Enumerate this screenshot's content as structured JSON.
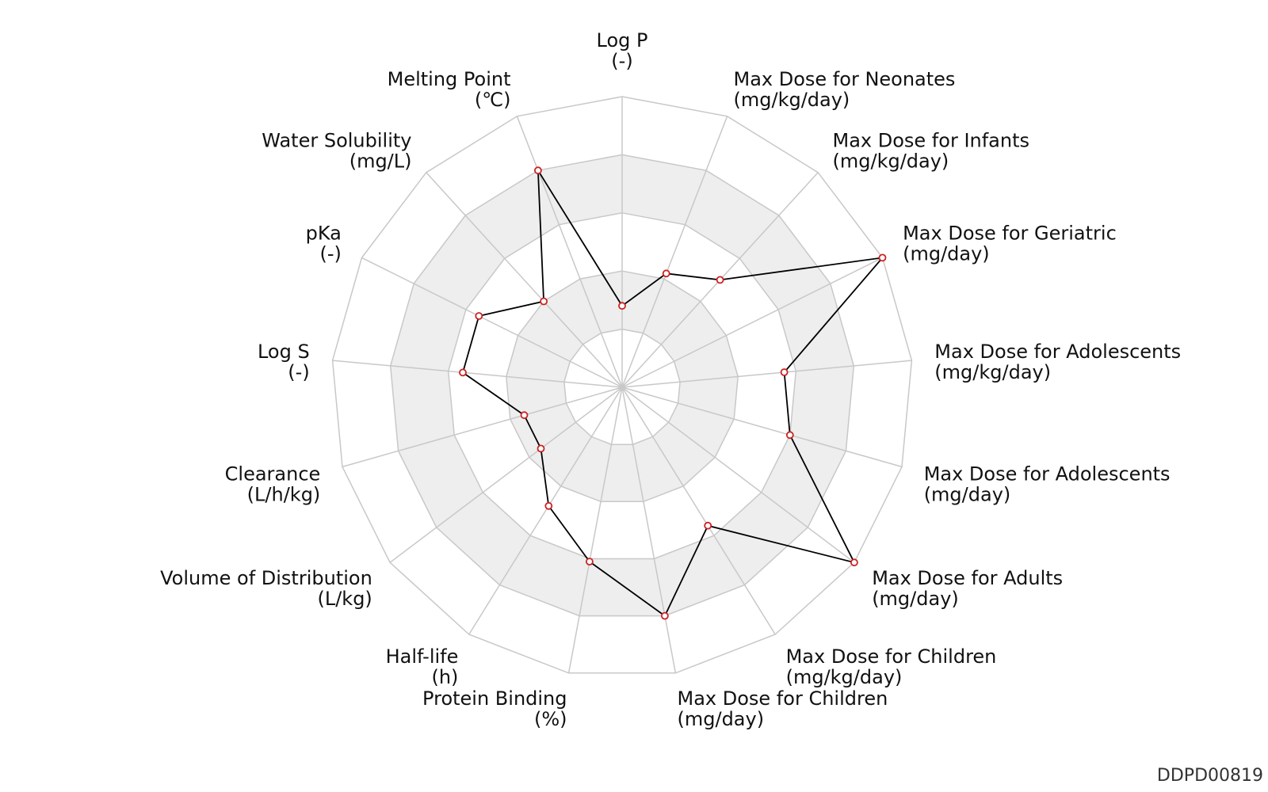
{
  "chart_data": {
    "type": "radar",
    "title": "",
    "levels": 5,
    "rmax": 1.0,
    "grid": true,
    "axes": [
      {
        "name": "Log P",
        "unit": "(-)",
        "value": 0.28
      },
      {
        "name": "Max Dose for Neonates",
        "unit": "(mg/kg/day)",
        "value": 0.42
      },
      {
        "name": "Max Dose for Infants",
        "unit": "(mg/kg/day)",
        "value": 0.5
      },
      {
        "name": "Max Dose for Geriatric",
        "unit": "(mg/day)",
        "value": 1.0
      },
      {
        "name": "Max Dose for Adolescents",
        "unit": "(mg/kg/day)",
        "value": 0.56
      },
      {
        "name": "Max Dose for Adolescents",
        "unit": "(mg/day)",
        "value": 0.6
      },
      {
        "name": "Max Dose for Adults",
        "unit": "(mg/day)",
        "value": 1.0
      },
      {
        "name": "Max Dose for Children",
        "unit": "(mg/kg/day)",
        "value": 0.56
      },
      {
        "name": "Max Dose for Children",
        "unit": "(mg/day)",
        "value": 0.8
      },
      {
        "name": "Protein Binding",
        "unit": "(%)",
        "value": 0.61
      },
      {
        "name": "Half-life",
        "unit": "(h)",
        "value": 0.48
      },
      {
        "name": "Volume of Distribution",
        "unit": "(L/kg)",
        "value": 0.35
      },
      {
        "name": "Clearance",
        "unit": "(L/h/kg)",
        "value": 0.35
      },
      {
        "name": "Log S",
        "unit": "(-)",
        "value": 0.55
      },
      {
        "name": "pKa",
        "unit": "(-)",
        "value": 0.55
      },
      {
        "name": "Water Solubility",
        "unit": "(mg/L)",
        "value": 0.4
      },
      {
        "name": "Melting Point",
        "unit": "(℃)",
        "value": 0.8
      }
    ]
  },
  "footer": {
    "id": "DDPD00819"
  },
  "colors": {
    "grid": "#c8c8c8",
    "band": "#eeeeee",
    "line": "#000000",
    "marker": "#cc2222"
  }
}
